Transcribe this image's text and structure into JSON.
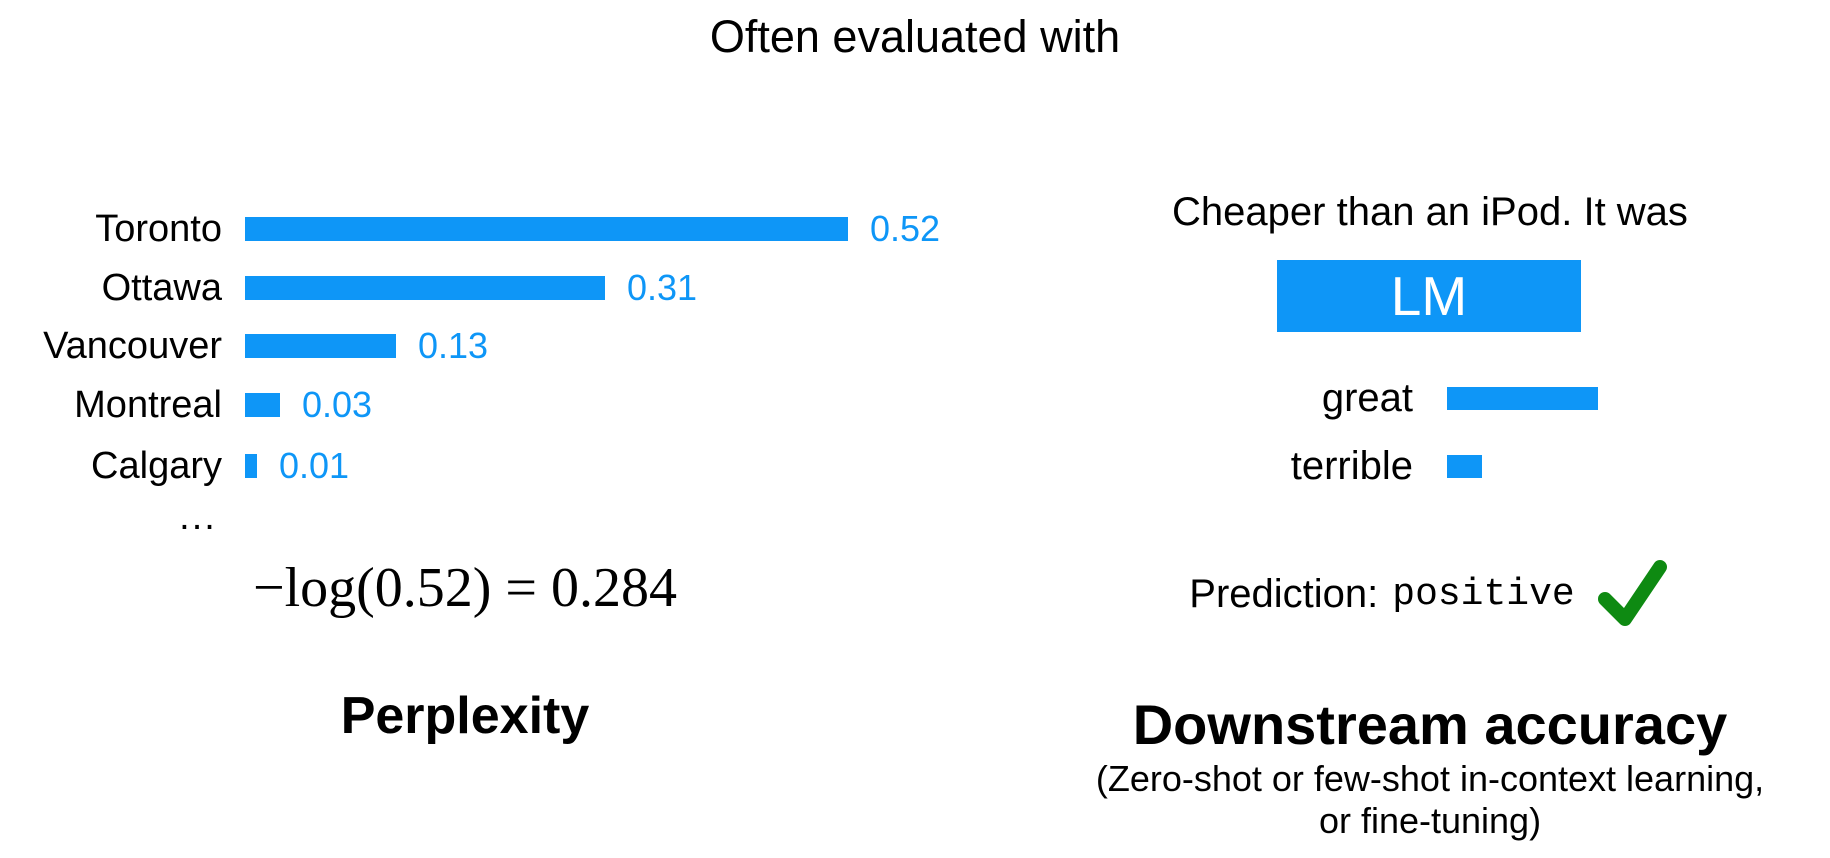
{
  "slide": {
    "title": "Often evaluated with"
  },
  "colors": {
    "bar_blue": "#0E96F7",
    "value_label_blue": "#0E96F7",
    "check_green": "#0E8A12",
    "lm_text": "#FFFFFF",
    "text": "#000000"
  },
  "chart_data": [
    {
      "type": "bar",
      "orientation": "horizontal",
      "title": "Perplexity",
      "categories": [
        "Toronto",
        "Ottawa",
        "Vancouver",
        "Montreal",
        "Calgary"
      ],
      "values": [
        0.52,
        0.31,
        0.13,
        0.03,
        0.01
      ],
      "value_labels": [
        "0.52",
        "0.31",
        "0.13",
        "0.03",
        "0.01"
      ],
      "truncation_label": "...",
      "annotation": "−log(0.52) = 0.284",
      "xlim": [
        0,
        0.6
      ],
      "grid": false,
      "legend": false,
      "bar_color": "#0E96F7",
      "value_label_position": "right-of-bar"
    },
    {
      "type": "bar",
      "orientation": "horizontal",
      "title": "Downstream accuracy",
      "subtitle_line1": "(Zero-shot or few-shot in-context learning,",
      "subtitle_line2": "or fine-tuning)",
      "context_text": "Cheaper than an iPod. It was",
      "model_label": "LM",
      "categories": [
        "great",
        "terrible"
      ],
      "values": [
        0.13,
        0.03
      ],
      "prediction_prefix": "Prediction:",
      "prediction_value": "positive",
      "prediction_icon": "green-checkmark",
      "xlim": [
        0,
        0.15
      ],
      "grid": false,
      "legend": false,
      "bar_color": "#0E96F7"
    }
  ]
}
